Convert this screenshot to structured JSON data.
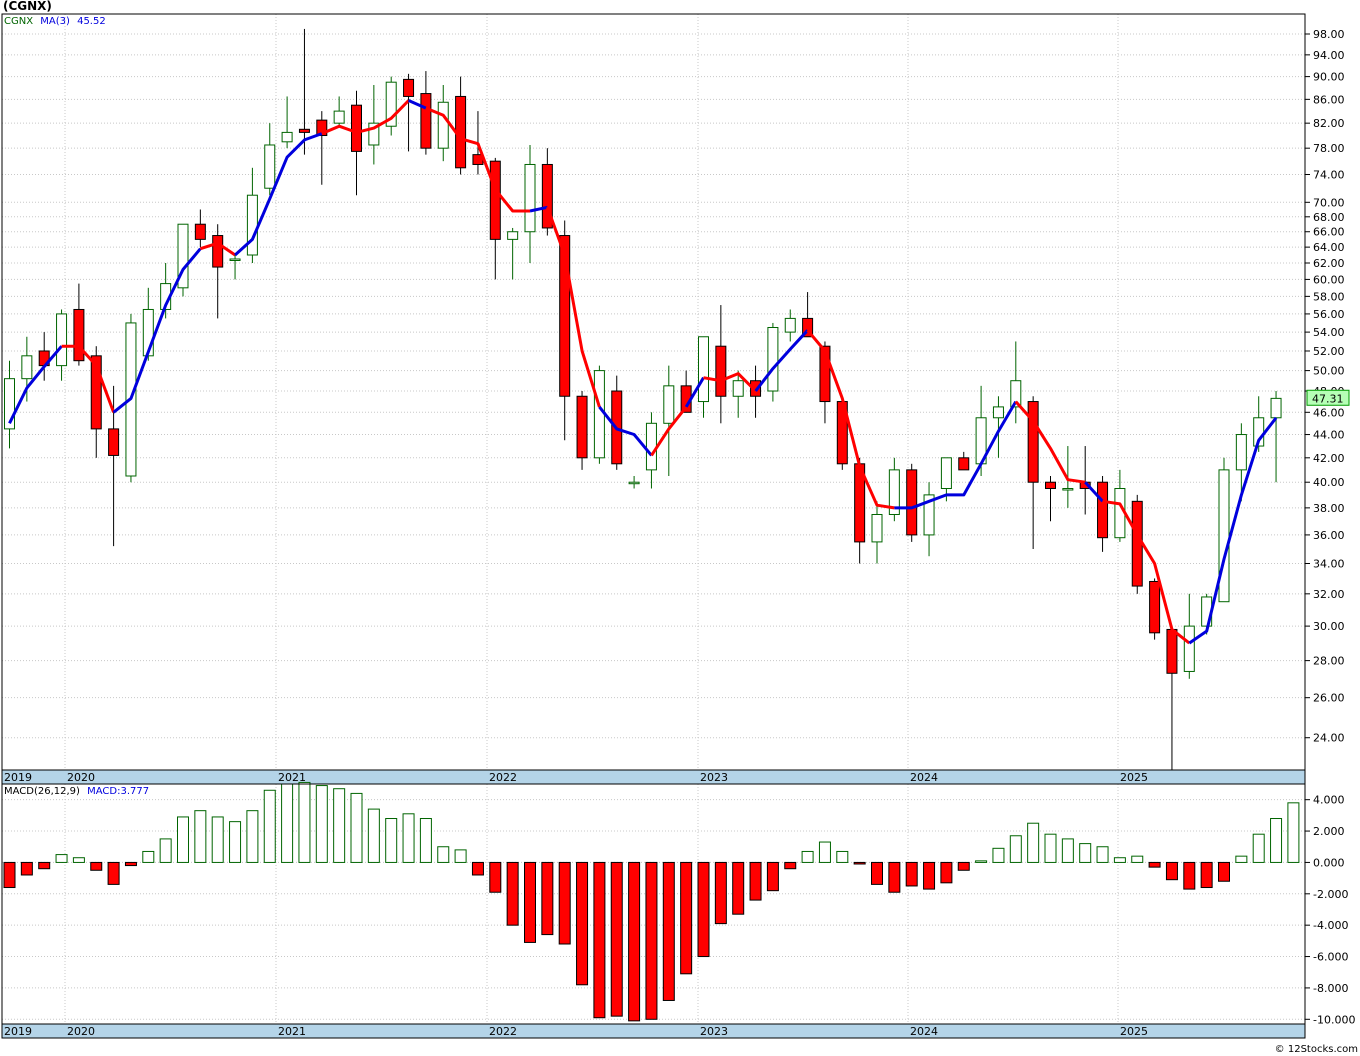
{
  "title": "(CGNX)",
  "copyright": "© 12Stocks.com",
  "colors": {
    "up": "#006400",
    "down": "#ff0000",
    "ma_up": "#0000dd",
    "ma_down": "#ff0000",
    "axis_band": "#b4d4e8",
    "grid": "#c8c8c8",
    "last_price_box": "#b6ffb6"
  },
  "price_legend": {
    "symbol": "CGNX",
    "ma_label": "MA(3)",
    "ma_value": "45.52"
  },
  "macd_legend": {
    "label": "MACD(26,12,9)",
    "value_label": "MACD:3.777"
  },
  "chart_data": [
    {
      "type": "candlestick",
      "scale": "log",
      "ylim": [
        22.5,
        102
      ],
      "y_ticks": [
        "24.00",
        "26.00",
        "28.00",
        "30.00",
        "32.00",
        "34.00",
        "36.00",
        "38.00",
        "40.00",
        "42.00",
        "44.00",
        "46.00",
        "48.00",
        "50.00",
        "52.00",
        "54.00",
        "56.00",
        "58.00",
        "60.00",
        "62.00",
        "64.00",
        "66.00",
        "68.00",
        "70.00",
        "74.00",
        "78.00",
        "82.00",
        "86.00",
        "90.00",
        "94.00",
        "98.00"
      ],
      "x_labels": [
        "2019",
        "2020",
        "2021",
        "2022",
        "2023",
        "2024",
        "2025"
      ],
      "last_price": "47.31",
      "candles": [
        [
          44.5,
          51.0,
          42.8,
          49.2
        ],
        [
          49.2,
          53.5,
          47.0,
          51.5
        ],
        [
          52.0,
          54.0,
          49.0,
          50.5
        ],
        [
          50.5,
          56.5,
          49.0,
          56.0
        ],
        [
          56.5,
          59.5,
          50.5,
          51.0
        ],
        [
          51.5,
          52.5,
          42.0,
          44.5
        ],
        [
          44.5,
          48.5,
          35.2,
          42.2
        ],
        [
          40.5,
          56.0,
          40.0,
          55.0
        ],
        [
          51.5,
          59.0,
          51.0,
          56.5
        ],
        [
          56.5,
          62.0,
          55.5,
          59.5
        ],
        [
          59.0,
          67.0,
          58.0,
          67.0
        ],
        [
          67.0,
          69.0,
          64.0,
          65.0
        ],
        [
          65.5,
          67.0,
          55.5,
          61.5
        ],
        [
          62.5,
          63.0,
          60.0,
          62.5
        ],
        [
          63.0,
          75.0,
          62.0,
          71.0
        ],
        [
          72.0,
          82.0,
          71.0,
          78.5
        ],
        [
          79.0,
          86.5,
          78.0,
          80.5
        ],
        [
          81.0,
          99.0,
          77.0,
          80.5
        ],
        [
          82.5,
          84.0,
          72.5,
          80.0
        ],
        [
          82.0,
          86.5,
          81.5,
          84.0
        ],
        [
          85.0,
          87.5,
          71.0,
          77.5
        ],
        [
          78.5,
          88.5,
          75.5,
          82.0
        ],
        [
          81.5,
          90.0,
          80.0,
          89.0
        ],
        [
          89.5,
          90.5,
          77.5,
          86.5
        ],
        [
          87.0,
          91.0,
          77.0,
          78.0
        ],
        [
          78.0,
          88.5,
          76.0,
          85.5
        ],
        [
          86.5,
          90.0,
          74.0,
          75.0
        ],
        [
          77.0,
          84.0,
          74.0,
          75.5
        ],
        [
          76.0,
          76.5,
          60.0,
          65.0
        ],
        [
          65.0,
          66.5,
          60.0,
          66.0
        ],
        [
          66.0,
          78.5,
          62.0,
          75.5
        ],
        [
          75.5,
          78.0,
          65.5,
          66.5
        ],
        [
          65.5,
          67.5,
          43.5,
          47.5
        ],
        [
          47.5,
          48.0,
          41.0,
          42.0
        ],
        [
          42.0,
          50.5,
          41.5,
          50.0
        ],
        [
          48.0,
          49.5,
          41.0,
          41.5
        ],
        [
          40.0,
          40.5,
          39.5,
          40.0
        ],
        [
          41.0,
          46.0,
          39.5,
          45.0
        ],
        [
          45.0,
          50.5,
          40.5,
          48.5
        ],
        [
          48.5,
          50.0,
          46.0,
          46.0
        ],
        [
          47.0,
          53.5,
          45.5,
          53.5
        ],
        [
          52.5,
          57.0,
          45.0,
          47.5
        ],
        [
          47.5,
          50.0,
          45.5,
          49.0
        ],
        [
          49.0,
          50.5,
          45.5,
          47.5
        ],
        [
          48.0,
          55.0,
          47.0,
          54.5
        ],
        [
          54.0,
          56.5,
          53.0,
          55.5
        ],
        [
          55.5,
          58.5,
          53.5,
          53.5
        ],
        [
          52.5,
          53.0,
          45.0,
          47.0
        ],
        [
          47.0,
          47.5,
          41.0,
          41.5
        ],
        [
          41.5,
          42.0,
          34.0,
          35.5
        ],
        [
          35.5,
          38.5,
          34.0,
          37.5
        ],
        [
          37.5,
          42.0,
          37.0,
          41.0
        ],
        [
          41.0,
          41.5,
          35.5,
          36.0
        ],
        [
          36.0,
          40.0,
          34.5,
          39.0
        ],
        [
          39.5,
          42.0,
          38.5,
          42.0
        ],
        [
          42.0,
          42.5,
          41.0,
          41.0
        ],
        [
          41.5,
          48.5,
          40.5,
          45.5
        ],
        [
          45.5,
          47.5,
          42.0,
          46.5
        ],
        [
          46.5,
          53.0,
          45.0,
          49.0
        ],
        [
          47.0,
          47.5,
          35.0,
          40.0
        ],
        [
          40.0,
          40.5,
          37.0,
          39.5
        ],
        [
          39.5,
          43.0,
          38.0,
          39.5
        ],
        [
          40.0,
          43.0,
          37.5,
          39.5
        ],
        [
          40.0,
          40.5,
          34.8,
          35.8
        ],
        [
          35.8,
          41.0,
          35.5,
          39.5
        ],
        [
          38.5,
          39.0,
          32.0,
          32.5
        ],
        [
          32.8,
          33.0,
          29.2,
          29.6
        ],
        [
          29.8,
          30.0,
          22.5,
          27.3
        ],
        [
          27.4,
          32.0,
          27.0,
          30.0
        ],
        [
          30.0,
          32.0,
          29.5,
          31.8
        ],
        [
          31.5,
          42.0,
          31.5,
          41.0
        ],
        [
          41.0,
          45.0,
          38.5,
          44.0
        ],
        [
          43.0,
          47.5,
          42.5,
          45.5
        ],
        [
          45.5,
          48.0,
          40.0,
          47.3
        ]
      ],
      "ma_values": [
        45.0,
        48.3,
        50.4,
        52.5,
        52.5,
        50.5,
        46.0,
        47.3,
        51.9,
        57.0,
        61.2,
        63.8,
        64.5,
        63.0,
        65.0,
        70.5,
        76.6,
        79.3,
        80.3,
        81.5,
        80.5,
        81.2,
        82.8,
        85.8,
        84.5,
        83.3,
        79.5,
        78.7,
        71.8,
        68.8,
        68.8,
        69.3,
        63.0,
        52.0,
        46.5,
        44.5,
        44.0,
        42.2,
        44.5,
        46.5,
        49.3,
        49.0,
        49.7,
        48.0,
        50.2,
        52.2,
        54.2,
        52.0,
        47.3,
        41.3,
        38.2,
        38.0,
        38.0,
        38.5,
        39.0,
        39.0,
        41.5,
        44.3,
        47.0,
        45.2,
        42.8,
        40.2,
        40.0,
        38.5,
        38.3,
        36.0,
        34.0,
        29.8,
        29.0,
        29.7,
        34.3,
        39.0,
        43.5,
        45.5
      ],
      "ma_segments": [
        [
          "up",
          0,
          3
        ],
        [
          "down",
          3,
          6
        ],
        [
          "up",
          6,
          11
        ],
        [
          "down",
          11,
          13
        ],
        [
          "up",
          13,
          18
        ],
        [
          "down",
          18,
          23
        ],
        [
          "up",
          23,
          24
        ],
        [
          "down",
          24,
          30
        ],
        [
          "up",
          30,
          31
        ],
        [
          "down",
          31,
          34
        ],
        [
          "up",
          34,
          37
        ],
        [
          "down",
          37,
          39
        ],
        [
          "up",
          39,
          40
        ],
        [
          "down",
          40,
          43
        ],
        [
          "up",
          43,
          46
        ],
        [
          "down",
          46,
          51
        ],
        [
          "up",
          51,
          58
        ],
        [
          "down",
          58,
          62
        ],
        [
          "up",
          62,
          63
        ],
        [
          "down",
          63,
          68
        ],
        [
          "up",
          68,
          73
        ]
      ]
    },
    {
      "type": "bar",
      "name": "MACD(26,12,9)",
      "ylim": [
        -10.3,
        5.0
      ],
      "y_ticks": [
        "4.000",
        "2.000",
        "0.000",
        "-2.000",
        "-4.000",
        "-6.000",
        "-8.000",
        "-10.000"
      ],
      "x_labels": [
        "2019",
        "2020",
        "2021",
        "2022",
        "2023",
        "2024",
        "2025"
      ],
      "values": [
        -1.6,
        -0.8,
        -0.4,
        0.5,
        0.3,
        -0.5,
        -1.4,
        -0.2,
        0.7,
        1.5,
        2.9,
        3.3,
        2.9,
        2.6,
        3.3,
        4.6,
        5.0,
        5.1,
        4.9,
        4.7,
        4.4,
        3.4,
        2.8,
        3.1,
        2.8,
        1.0,
        0.8,
        -0.8,
        -1.9,
        -4.0,
        -5.1,
        -4.6,
        -5.2,
        -7.8,
        -9.9,
        -9.8,
        -10.1,
        -10.0,
        -8.8,
        -7.1,
        -6.0,
        -3.9,
        -3.3,
        -2.4,
        -1.8,
        -0.4,
        0.7,
        1.3,
        0.7,
        -0.1,
        -1.4,
        -1.9,
        -1.5,
        -1.7,
        -1.3,
        -0.5,
        0.1,
        0.9,
        1.7,
        2.5,
        1.8,
        1.5,
        1.2,
        1.0,
        0.3,
        0.4,
        -0.3,
        -1.1,
        -1.7,
        -1.6,
        -1.2,
        0.4,
        1.8,
        2.8,
        3.8
      ]
    }
  ]
}
